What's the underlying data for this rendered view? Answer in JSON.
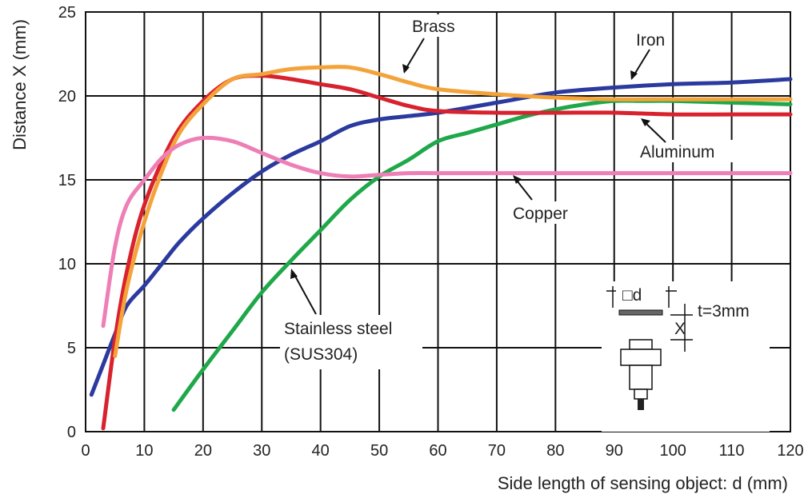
{
  "chart_data": {
    "type": "line",
    "title": "",
    "xlabel": "Side length of sensing object: d (mm)",
    "ylabel": "Distance X (mm)",
    "xlim": [
      0,
      120
    ],
    "ylim": [
      0,
      25
    ],
    "xticks": [
      0,
      10,
      20,
      30,
      40,
      50,
      60,
      70,
      80,
      90,
      100,
      110,
      120
    ],
    "yticks": [
      0,
      5,
      10,
      15,
      20,
      25
    ],
    "grid": true,
    "series": [
      {
        "name": "Stainless steel (SUS304)",
        "color": "#1fa84a",
        "x": [
          15,
          20,
          25,
          30,
          35,
          40,
          45,
          50,
          55,
          60,
          65,
          70,
          75,
          80,
          85,
          90,
          95,
          100,
          110,
          120
        ],
        "y": [
          1.3,
          3.7,
          6.0,
          8.3,
          10.2,
          12.0,
          13.8,
          15.2,
          16.2,
          17.3,
          17.8,
          18.3,
          18.8,
          19.2,
          19.5,
          19.7,
          19.7,
          19.7,
          19.6,
          19.5
        ]
      },
      {
        "name": "Iron",
        "color": "#2a3a9e",
        "x": [
          1,
          3,
          5,
          7,
          10,
          13,
          16,
          20,
          25,
          30,
          35,
          40,
          45,
          50,
          55,
          60,
          70,
          80,
          90,
          100,
          110,
          120
        ],
        "y": [
          2.2,
          4.0,
          5.8,
          7.5,
          8.7,
          10.0,
          11.3,
          12.7,
          14.2,
          15.5,
          16.5,
          17.3,
          18.2,
          18.6,
          18.8,
          19.0,
          19.6,
          20.2,
          20.5,
          20.7,
          20.8,
          21.0
        ]
      },
      {
        "name": "Aluminum",
        "color": "#d8222e",
        "x": [
          3,
          5,
          7,
          10,
          15,
          20,
          25,
          30,
          35,
          40,
          45,
          50,
          55,
          60,
          70,
          80,
          90,
          100,
          110,
          120
        ],
        "y": [
          0.2,
          5.5,
          9.5,
          13.5,
          17.5,
          19.7,
          21.0,
          21.2,
          21.0,
          20.7,
          20.4,
          19.9,
          19.4,
          19.1,
          19.0,
          19.0,
          19.0,
          18.9,
          18.9,
          18.9
        ]
      },
      {
        "name": "Brass",
        "color": "#f4a33a",
        "x": [
          5,
          7,
          10,
          13,
          16,
          20,
          25,
          30,
          35,
          40,
          45,
          50,
          55,
          60,
          70,
          80,
          90,
          100,
          110,
          120
        ],
        "y": [
          4.5,
          8.5,
          12.5,
          15.5,
          17.8,
          19.5,
          21.0,
          21.3,
          21.6,
          21.7,
          21.7,
          21.3,
          20.8,
          20.4,
          20.1,
          19.9,
          19.8,
          19.8,
          19.8,
          19.8
        ]
      },
      {
        "name": "Copper",
        "color": "#ee7fb6",
        "x": [
          3,
          5,
          7,
          10,
          13,
          16,
          20,
          25,
          30,
          35,
          40,
          45,
          50,
          55,
          60,
          70,
          80,
          90,
          100,
          110,
          120
        ],
        "y": [
          6.3,
          11.0,
          13.5,
          15.0,
          16.3,
          17.1,
          17.5,
          17.3,
          16.6,
          15.9,
          15.4,
          15.2,
          15.3,
          15.4,
          15.4,
          15.4,
          15.4,
          15.4,
          15.4,
          15.4,
          15.4
        ]
      }
    ],
    "annotations": {
      "brass": "Brass",
      "iron": "Iron",
      "aluminum": "Aluminum",
      "copper": "Copper",
      "stainless_line1": "Stainless steel",
      "stainless_line2": "(SUS304)"
    },
    "inset": {
      "d_label": "□d",
      "x_label": "X",
      "t_label": "t=3mm"
    }
  }
}
